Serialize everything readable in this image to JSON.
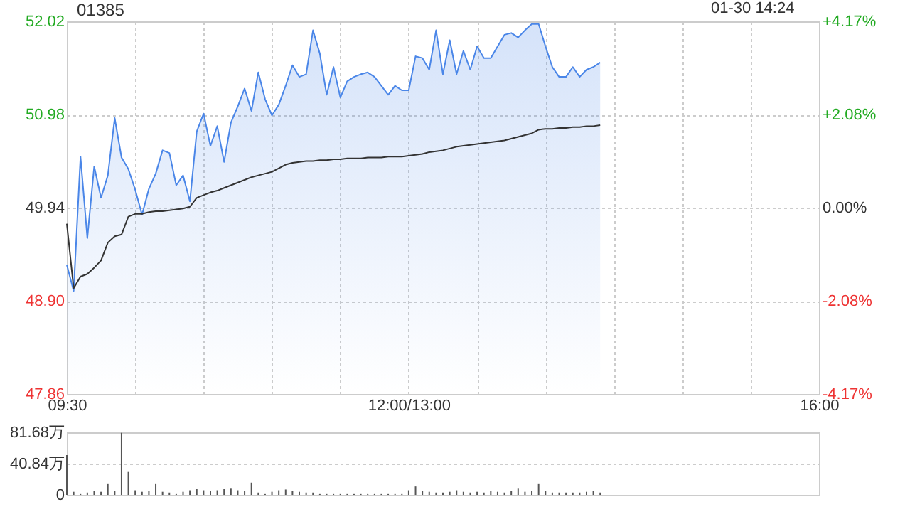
{
  "chart_data": [
    {
      "type": "area",
      "title": "01385",
      "annotations": [
        "01-30 14:24"
      ],
      "categories": [
        "09:30",
        null,
        null,
        null,
        null,
        null,
        null,
        null,
        null,
        null,
        null,
        null,
        null,
        null,
        null,
        null,
        null,
        null,
        null,
        null,
        null,
        null,
        null,
        null,
        null,
        null,
        null,
        null,
        null,
        null,
        null,
        null,
        null,
        null,
        null,
        null,
        null,
        null,
        null,
        null,
        null,
        null,
        null,
        null,
        null,
        null,
        null,
        null,
        null,
        null,
        "12:00/13:00",
        null,
        null,
        null,
        null,
        null,
        null,
        null,
        null,
        null,
        null,
        null,
        null,
        null,
        null,
        null,
        null,
        null,
        null,
        null,
        null,
        null,
        null,
        null,
        null,
        null,
        null,
        null,
        null,
        null,
        null,
        null,
        null,
        null,
        null,
        null,
        null,
        null,
        null,
        null,
        null,
        null,
        null,
        null,
        null,
        null,
        null,
        null,
        null,
        null,
        null,
        null,
        null,
        null,
        null,
        null,
        null,
        null,
        null,
        null,
        "16:00"
      ],
      "ylim": [
        47.86,
        52.02
      ],
      "yticks": [
        47.86,
        {
          "value": 48.9,
          "label": "48.90"
        },
        49.94,
        50.98,
        52.02
      ],
      "y2lim": [
        -4.17,
        4.17
      ],
      "y2ticks": [
        {
          "value": -4.17,
          "label": "-4.17%"
        },
        {
          "value": -2.08,
          "label": "-2.08%"
        },
        {
          "value": 0,
          "label": "0.00%"
        },
        {
          "value": 2.08,
          "label": "+2.08%"
        },
        {
          "value": 4.17,
          "label": "+4.17%"
        }
      ],
      "grid": true,
      "series": [
        {
          "color": "#4a86e8",
          "values": [
            49.3,
            49.01,
            50.51,
            49.6,
            50.4,
            50.05,
            50.3,
            50.94,
            50.5,
            50.37,
            50.14,
            49.86,
            50.15,
            50.32,
            50.58,
            50.55,
            50.19,
            50.3,
            50.01,
            50.79,
            50.99,
            50.63,
            50.85,
            50.45,
            50.89,
            51.07,
            51.27,
            51.02,
            51.45,
            51.15,
            50.97,
            51.09,
            51.3,
            51.53,
            51.4,
            51.43,
            51.92,
            51.66,
            51.2,
            51.51,
            51.17,
            51.35,
            51.4,
            51.43,
            51.45,
            51.4,
            51.3,
            51.2,
            51.3,
            51.25,
            51.25,
            51.63,
            51.61,
            51.48,
            51.92,
            51.43,
            51.81,
            51.43,
            51.69,
            51.48,
            51.74,
            51.61,
            51.61,
            51.74,
            51.87,
            51.89,
            51.84,
            51.92,
            51.99,
            51.99,
            51.74,
            51.51,
            51.4,
            51.4,
            51.51,
            51.4,
            51.48,
            51.51,
            51.56,
            null,
            null,
            null,
            null,
            null,
            null,
            null,
            null,
            null,
            null,
            null,
            null,
            null,
            null,
            null,
            null,
            null,
            null,
            null,
            null,
            null,
            null,
            null,
            null,
            null,
            null,
            null,
            null,
            null,
            null,
            null,
            null
          ]
        },
        {
          "type": "line",
          "color": "#333333",
          "values": [
            49.76,
            49.04,
            49.17,
            49.2,
            49.27,
            49.35,
            49.55,
            49.62,
            49.64,
            49.84,
            49.87,
            49.87,
            49.89,
            49.9,
            49.9,
            49.91,
            49.92,
            49.93,
            49.95,
            50.05,
            50.08,
            50.11,
            50.13,
            50.16,
            50.19,
            50.22,
            50.25,
            50.28,
            50.3,
            50.32,
            50.34,
            50.38,
            50.42,
            50.44,
            50.45,
            50.46,
            50.46,
            50.47,
            50.47,
            50.48,
            50.48,
            50.49,
            50.49,
            50.49,
            50.5,
            50.5,
            50.5,
            50.51,
            50.51,
            50.51,
            50.52,
            50.53,
            50.54,
            50.56,
            50.57,
            50.58,
            50.6,
            50.62,
            50.63,
            50.64,
            50.65,
            50.66,
            50.67,
            50.68,
            50.69,
            50.71,
            50.73,
            50.75,
            50.77,
            50.81,
            50.82,
            50.82,
            50.83,
            50.83,
            50.84,
            50.84,
            50.85,
            50.85,
            50.86,
            null,
            null,
            null,
            null,
            null,
            null,
            null,
            null,
            null,
            null,
            null,
            null,
            null,
            null,
            null,
            null,
            null,
            null,
            null,
            null,
            null,
            null,
            null,
            null,
            null,
            null,
            null,
            null,
            null,
            null,
            null,
            null
          ]
        }
      ]
    },
    {
      "type": "bar",
      "tick_labels": "y",
      "grid": "y",
      "categories": [
        null,
        null,
        null,
        null,
        null,
        null,
        null,
        null,
        null,
        null,
        null,
        null,
        null,
        null,
        null,
        null,
        null,
        null,
        null,
        null,
        null,
        null,
        null,
        null,
        null,
        null,
        null,
        null,
        null,
        null,
        null,
        null,
        null,
        null,
        null,
        null,
        null,
        null,
        null,
        null,
        null,
        null,
        null,
        null,
        null,
        null,
        null,
        null,
        null,
        null,
        null,
        null,
        null,
        null,
        null,
        null,
        null,
        null,
        null,
        null,
        null,
        null,
        null,
        null,
        null,
        null,
        null,
        null,
        null,
        null,
        null,
        null,
        null,
        null,
        null,
        null,
        null,
        null,
        null,
        null,
        null,
        null,
        null,
        null,
        null,
        null,
        null,
        null,
        null,
        null,
        null,
        null,
        null,
        null,
        null,
        null,
        null,
        null,
        null,
        null,
        null,
        null,
        null,
        null,
        null,
        null,
        null,
        null,
        null,
        null,
        null
      ],
      "ylim": [
        0,
        81.68
      ],
      "yticks": [
        0,
        {
          "value": 40.84,
          "label": "40.84万"
        },
        {
          "value": 81.68,
          "label": "81.68万"
        }
      ],
      "series": [
        {
          "color": "#555555",
          "values": [
            52,
            4,
            2,
            3,
            5,
            4,
            15,
            5,
            81,
            30,
            6,
            4,
            5,
            15,
            4,
            3,
            2,
            4,
            6,
            8,
            6,
            5,
            6,
            8,
            9,
            6,
            5,
            16,
            3,
            2,
            4,
            6,
            7,
            5,
            4,
            3,
            3,
            2,
            2,
            2,
            2,
            2,
            2,
            2,
            2,
            2,
            2,
            2,
            2,
            2,
            6,
            11,
            5,
            4,
            3,
            3,
            4,
            6,
            4,
            3,
            4,
            3,
            5,
            4,
            3,
            5,
            9,
            4,
            5,
            15,
            5,
            3,
            3,
            3,
            3,
            3,
            4,
            5,
            3,
            null,
            null,
            null,
            null,
            null,
            null,
            null,
            null,
            null,
            null,
            null,
            null,
            null,
            null,
            null,
            null,
            null,
            null,
            null,
            null,
            null,
            null,
            null,
            null,
            null,
            null,
            null,
            null,
            null,
            null,
            null,
            null
          ]
        }
      ]
    }
  ]
}
